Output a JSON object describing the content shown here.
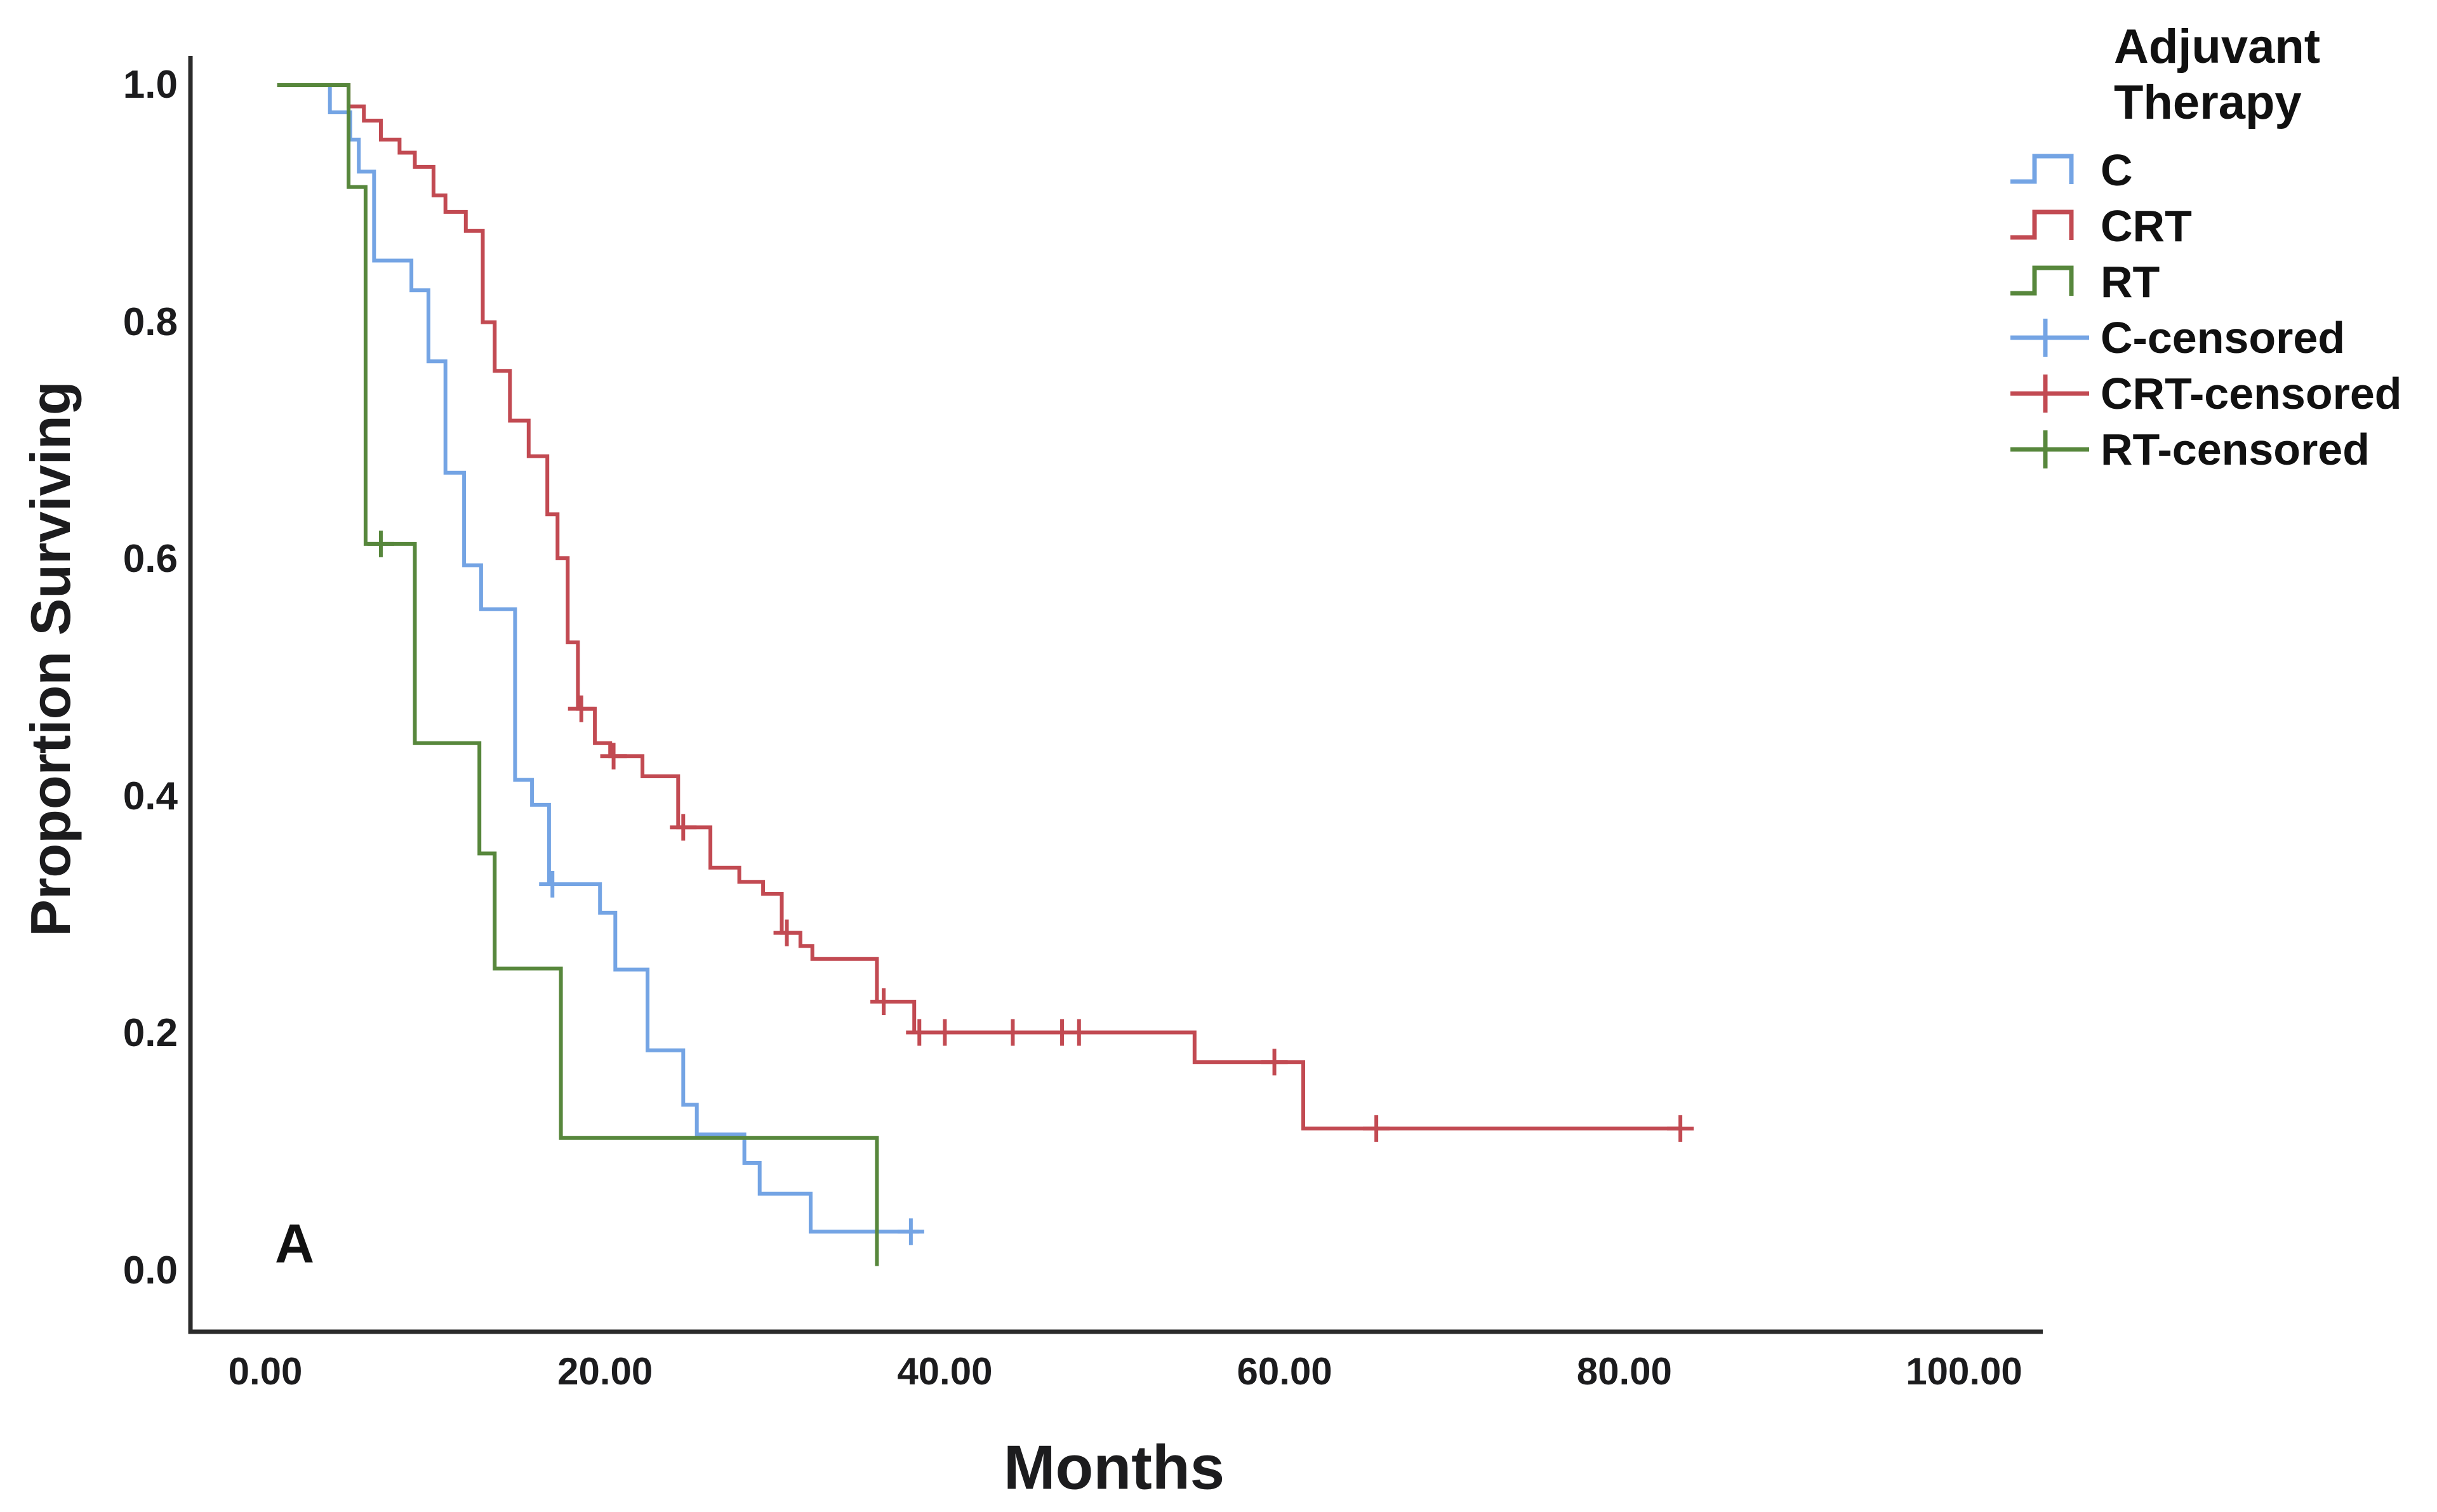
{
  "panel": {
    "label": "A"
  },
  "colors": {
    "c_blue": "#74A4E4",
    "crt_red": "#C24A52",
    "rt_green": "#57873C",
    "axis": "#2B2B2B",
    "text": "#1C1C1E"
  },
  "chart_data": {
    "type": "line",
    "subtype": "kaplan_meier_step",
    "title": "",
    "xlabel": "Months",
    "ylabel": "Proportion Surviving",
    "grid": false,
    "legend_position": "right",
    "xlim": [
      -4.4,
      104.7
    ],
    "ylim": [
      -0.05,
      1.07
    ],
    "x_ticks": {
      "values": [
        0,
        20,
        40,
        60,
        80,
        100
      ],
      "labels": [
        "0.00",
        "20.00",
        "40.00",
        "60.00",
        "80.00",
        "100.00"
      ]
    },
    "y_ticks": {
      "values": [
        0,
        0.2,
        0.4,
        0.6,
        0.8,
        1
      ],
      "labels": [
        "0.0",
        "0.2",
        "0.4",
        "0.6",
        "0.8",
        "1.0"
      ]
    },
    "legend": {
      "title": "Adjuvant Therapy",
      "entries": [
        {
          "label": "C",
          "marker": "step",
          "color": "#74A4E4"
        },
        {
          "label": "CRT",
          "marker": "step",
          "color": "#C24A52"
        },
        {
          "label": "RT",
          "marker": "step",
          "color": "#57873C"
        },
        {
          "label": "C-censored",
          "marker": "censored",
          "color": "#74A4E4"
        },
        {
          "label": "CRT-censored",
          "marker": "censored",
          "color": "#C24A52"
        },
        {
          "label": "RT-censored",
          "marker": "censored",
          "color": "#57873C"
        }
      ]
    },
    "series": [
      {
        "name": "C",
        "color": "#74A4E4",
        "start_month": 0.7,
        "end_month": 38.5,
        "steps": [
          [
            3.8,
            0.977
          ],
          [
            5.0,
            0.954
          ],
          [
            5.5,
            0.927
          ],
          [
            6.4,
            0.852
          ],
          [
            8.6,
            0.827
          ],
          [
            9.6,
            0.767
          ],
          [
            10.6,
            0.673
          ],
          [
            11.7,
            0.595
          ],
          [
            12.7,
            0.558
          ],
          [
            14.7,
            0.414
          ],
          [
            15.7,
            0.393
          ],
          [
            16.7,
            0.326
          ],
          [
            19.7,
            0.302
          ],
          [
            20.6,
            0.254
          ],
          [
            22.5,
            0.186
          ],
          [
            24.6,
            0.14
          ],
          [
            25.4,
            0.115
          ],
          [
            28.2,
            0.091
          ],
          [
            29.1,
            0.065
          ],
          [
            32.1,
            0.033
          ]
        ],
        "censored": [
          [
            16.9,
            0.326
          ],
          [
            38.0,
            0.033
          ]
        ]
      },
      {
        "name": "CRT",
        "color": "#C24A52",
        "start_month": 0.7,
        "end_month": 83.3,
        "steps": [
          [
            4.9,
            0.982
          ],
          [
            5.8,
            0.97
          ],
          [
            6.8,
            0.954
          ],
          [
            7.9,
            0.943
          ],
          [
            8.8,
            0.931
          ],
          [
            9.9,
            0.907
          ],
          [
            10.6,
            0.893
          ],
          [
            11.8,
            0.877
          ],
          [
            12.8,
            0.8
          ],
          [
            13.5,
            0.759
          ],
          [
            14.4,
            0.717
          ],
          [
            15.5,
            0.687
          ],
          [
            16.6,
            0.638
          ],
          [
            17.2,
            0.601
          ],
          [
            17.8,
            0.53
          ],
          [
            18.4,
            0.474
          ],
          [
            19.4,
            0.445
          ],
          [
            20.3,
            0.434
          ],
          [
            22.2,
            0.417
          ],
          [
            24.3,
            0.374
          ],
          [
            26.2,
            0.34
          ],
          [
            27.9,
            0.328
          ],
          [
            29.3,
            0.318
          ],
          [
            30.4,
            0.285
          ],
          [
            31.5,
            0.274
          ],
          [
            32.2,
            0.263
          ],
          [
            36.0,
            0.227
          ],
          [
            38.2,
            0.201
          ],
          [
            54.7,
            0.176
          ],
          [
            61.1,
            0.12
          ]
        ],
        "censored": [
          [
            18.6,
            0.474
          ],
          [
            20.5,
            0.434
          ],
          [
            24.6,
            0.374
          ],
          [
            30.7,
            0.285
          ],
          [
            36.4,
            0.227
          ],
          [
            38.5,
            0.201
          ],
          [
            40.0,
            0.201
          ],
          [
            44.0,
            0.201
          ],
          [
            46.9,
            0.201
          ],
          [
            47.9,
            0.201
          ],
          [
            59.4,
            0.176
          ],
          [
            65.4,
            0.12
          ],
          [
            83.3,
            0.12
          ]
        ]
      },
      {
        "name": "RT",
        "color": "#57873C",
        "start_month": 0.7,
        "end_month": 36.0,
        "steps": [
          [
            4.9,
            0.914
          ],
          [
            5.9,
            0.613
          ],
          [
            8.8,
            0.445
          ],
          [
            12.6,
            0.352
          ],
          [
            13.5,
            0.255
          ],
          [
            17.4,
            0.112
          ],
          [
            36.0,
            0.004
          ]
        ],
        "censored": [
          [
            6.8,
            0.613
          ]
        ]
      }
    ]
  }
}
